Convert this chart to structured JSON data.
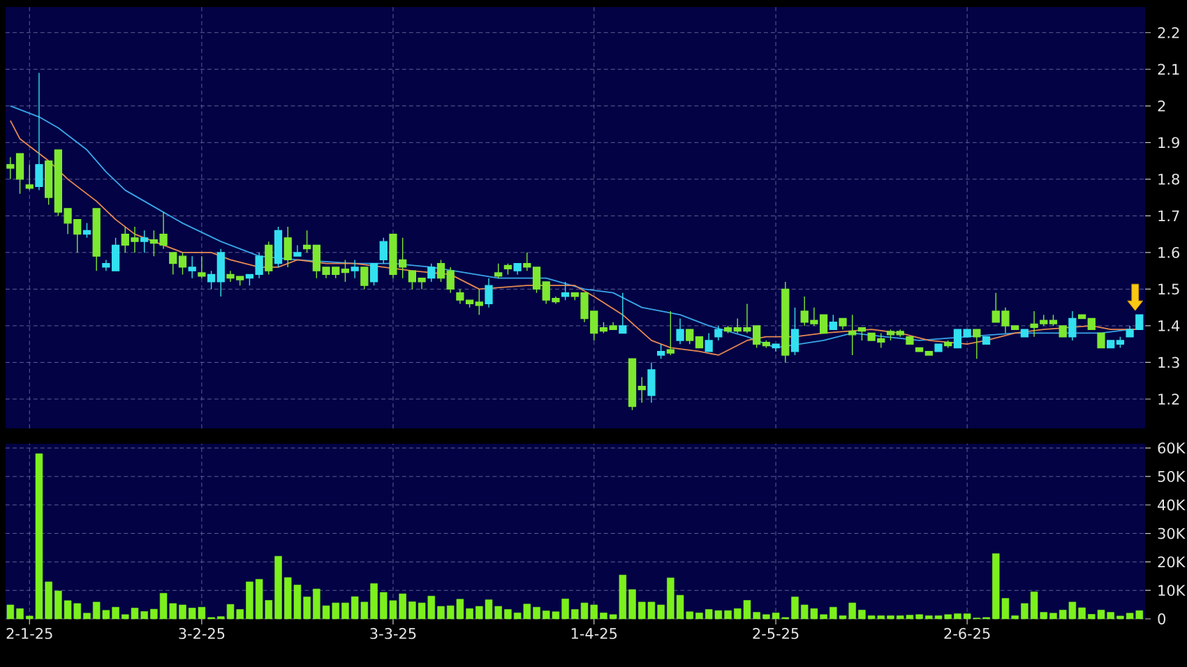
{
  "chart_data": [
    {
      "type": "candlestick",
      "categories": [
        null,
        null,
        null,
        null,
        null,
        null,
        null,
        null,
        null,
        null,
        null,
        null,
        null,
        null,
        null,
        null,
        null,
        null,
        null,
        null,
        null,
        null,
        null,
        null,
        null,
        null,
        null,
        null,
        null,
        null,
        null,
        null,
        null,
        null,
        null,
        null,
        null,
        null,
        null,
        null,
        null,
        null,
        null,
        null,
        null,
        null,
        null,
        null,
        null,
        null,
        null,
        null,
        null,
        null,
        null,
        null,
        null,
        null,
        null,
        null,
        null,
        null,
        null,
        null,
        null,
        null,
        null,
        null,
        null,
        null,
        null,
        null,
        null,
        null,
        null,
        null,
        null,
        null,
        null,
        null,
        null,
        null,
        null,
        null,
        null,
        null,
        null,
        null,
        null,
        null,
        null,
        null,
        null,
        null,
        null,
        null,
        null,
        null,
        null,
        null,
        null,
        null,
        null,
        null,
        null,
        null,
        null,
        null,
        null,
        null,
        null,
        null,
        null,
        null,
        null,
        null,
        null,
        null,
        null
      ],
      "tick_labels": "y",
      "ohlc": [
        [
          1.84,
          1.86,
          1.8,
          1.83
        ],
        [
          1.87,
          1.87,
          1.76,
          1.8
        ],
        [
          1.78,
          1.84,
          1.77,
          1.78
        ],
        [
          1.78,
          2.09,
          1.77,
          1.84
        ],
        [
          1.85,
          1.85,
          1.73,
          1.75
        ],
        [
          1.88,
          1.88,
          1.7,
          1.71
        ],
        [
          1.72,
          1.72,
          1.65,
          1.68
        ],
        [
          1.69,
          1.69,
          1.6,
          1.65
        ],
        [
          1.65,
          1.68,
          1.64,
          1.66
        ],
        [
          1.72,
          1.72,
          1.55,
          1.59
        ],
        [
          1.56,
          1.58,
          1.55,
          1.57
        ],
        [
          1.55,
          1.64,
          1.55,
          1.62
        ],
        [
          1.65,
          1.67,
          1.6,
          1.62
        ],
        [
          1.64,
          1.67,
          1.6,
          1.63
        ],
        [
          1.63,
          1.66,
          1.6,
          1.64
        ],
        [
          1.63,
          1.66,
          1.59,
          1.63
        ],
        [
          1.65,
          1.71,
          1.61,
          1.62
        ],
        [
          1.6,
          1.6,
          1.54,
          1.57
        ],
        [
          1.59,
          1.6,
          1.54,
          1.56
        ],
        [
          1.55,
          1.59,
          1.53,
          1.56
        ],
        [
          1.54,
          1.59,
          1.53,
          1.54
        ],
        [
          1.52,
          1.55,
          1.5,
          1.54
        ],
        [
          1.52,
          1.61,
          1.48,
          1.6
        ],
        [
          1.54,
          1.55,
          1.52,
          1.53
        ],
        [
          1.53,
          1.53,
          1.51,
          1.53
        ],
        [
          1.53,
          1.54,
          1.51,
          1.54
        ],
        [
          1.54,
          1.6,
          1.53,
          1.59
        ],
        [
          1.62,
          1.63,
          1.54,
          1.55
        ],
        [
          1.57,
          1.67,
          1.56,
          1.66
        ],
        [
          1.64,
          1.67,
          1.56,
          1.58
        ],
        [
          1.59,
          1.62,
          1.59,
          1.6
        ],
        [
          1.62,
          1.66,
          1.6,
          1.61
        ],
        [
          1.62,
          1.62,
          1.53,
          1.55
        ],
        [
          1.56,
          1.56,
          1.53,
          1.54
        ],
        [
          1.56,
          1.56,
          1.53,
          1.54
        ],
        [
          1.55,
          1.58,
          1.52,
          1.55
        ],
        [
          1.55,
          1.58,
          1.53,
          1.56
        ],
        [
          1.56,
          1.56,
          1.5,
          1.51
        ],
        [
          1.52,
          1.57,
          1.51,
          1.57
        ],
        [
          1.58,
          1.64,
          1.57,
          1.63
        ],
        [
          1.65,
          1.65,
          1.53,
          1.54
        ],
        [
          1.58,
          1.64,
          1.53,
          1.56
        ],
        [
          1.55,
          1.55,
          1.5,
          1.52
        ],
        [
          1.53,
          1.53,
          1.5,
          1.52
        ],
        [
          1.53,
          1.57,
          1.52,
          1.56
        ],
        [
          1.57,
          1.58,
          1.52,
          1.53
        ],
        [
          1.55,
          1.56,
          1.49,
          1.5
        ],
        [
          1.49,
          1.5,
          1.46,
          1.47
        ],
        [
          1.47,
          1.47,
          1.45,
          1.46
        ],
        [
          1.46,
          1.5,
          1.43,
          1.46
        ],
        [
          1.46,
          1.53,
          1.45,
          1.51
        ],
        [
          1.54,
          1.57,
          1.53,
          1.54
        ],
        [
          1.56,
          1.57,
          1.54,
          1.56
        ],
        [
          1.55,
          1.57,
          1.54,
          1.57
        ],
        [
          1.57,
          1.6,
          1.55,
          1.56
        ],
        [
          1.56,
          1.56,
          1.49,
          1.5
        ],
        [
          1.52,
          1.52,
          1.46,
          1.47
        ],
        [
          1.47,
          1.48,
          1.46,
          1.47
        ],
        [
          1.48,
          1.52,
          1.47,
          1.49
        ],
        [
          1.49,
          1.49,
          1.47,
          1.48
        ],
        [
          1.49,
          1.49,
          1.41,
          1.42
        ],
        [
          1.44,
          1.44,
          1.36,
          1.38
        ],
        [
          1.39,
          1.41,
          1.38,
          1.39
        ],
        [
          1.4,
          1.41,
          1.39,
          1.39
        ],
        [
          1.38,
          1.49,
          1.38,
          1.4
        ],
        [
          1.31,
          1.31,
          1.17,
          1.18
        ],
        [
          1.23,
          1.26,
          1.19,
          1.23
        ],
        [
          1.21,
          1.3,
          1.19,
          1.28
        ],
        [
          1.32,
          1.35,
          1.31,
          1.33
        ],
        [
          1.33,
          1.44,
          1.32,
          1.33
        ],
        [
          1.36,
          1.42,
          1.35,
          1.39
        ],
        [
          1.39,
          1.39,
          1.35,
          1.36
        ],
        [
          1.37,
          1.37,
          1.34,
          1.34
        ],
        [
          1.33,
          1.38,
          1.33,
          1.36
        ],
        [
          1.37,
          1.4,
          1.36,
          1.39
        ],
        [
          1.39,
          1.4,
          1.38,
          1.39
        ],
        [
          1.39,
          1.42,
          1.38,
          1.39
        ],
        [
          1.39,
          1.46,
          1.38,
          1.39
        ],
        [
          1.4,
          1.4,
          1.34,
          1.35
        ],
        [
          1.35,
          1.36,
          1.34,
          1.35
        ],
        [
          1.34,
          1.35,
          1.33,
          1.35
        ],
        [
          1.5,
          1.52,
          1.3,
          1.32
        ],
        [
          1.33,
          1.45,
          1.32,
          1.39
        ],
        [
          1.44,
          1.48,
          1.4,
          1.41
        ],
        [
          1.41,
          1.45,
          1.4,
          1.41
        ],
        [
          1.43,
          1.43,
          1.38,
          1.38
        ],
        [
          1.39,
          1.43,
          1.39,
          1.41
        ],
        [
          1.42,
          1.42,
          1.39,
          1.4
        ],
        [
          1.38,
          1.43,
          1.32,
          1.38
        ],
        [
          1.39,
          1.39,
          1.36,
          1.39
        ],
        [
          1.38,
          1.38,
          1.36,
          1.36
        ],
        [
          1.36,
          1.38,
          1.34,
          1.36
        ],
        [
          1.38,
          1.39,
          1.36,
          1.38
        ],
        [
          1.38,
          1.39,
          1.37,
          1.38
        ],
        [
          1.37,
          1.37,
          1.35,
          1.35
        ],
        [
          1.34,
          1.34,
          1.33,
          1.33
        ],
        [
          1.33,
          1.33,
          1.32,
          1.32
        ],
        [
          1.33,
          1.35,
          1.33,
          1.35
        ],
        [
          1.35,
          1.36,
          1.34,
          1.35
        ],
        [
          1.34,
          1.39,
          1.34,
          1.39
        ],
        [
          1.37,
          1.39,
          1.37,
          1.39
        ],
        [
          1.39,
          1.39,
          1.31,
          1.37
        ],
        [
          1.35,
          1.37,
          1.35,
          1.37
        ],
        [
          1.44,
          1.49,
          1.41,
          1.41
        ],
        [
          1.44,
          1.45,
          1.38,
          1.4
        ],
        [
          1.4,
          1.4,
          1.39,
          1.39
        ],
        [
          1.37,
          1.39,
          1.37,
          1.39
        ],
        [
          1.4,
          1.44,
          1.37,
          1.4
        ],
        [
          1.41,
          1.43,
          1.4,
          1.41
        ],
        [
          1.41,
          1.43,
          1.4,
          1.41
        ],
        [
          1.4,
          1.4,
          1.37,
          1.37
        ],
        [
          1.37,
          1.44,
          1.36,
          1.42
        ],
        [
          1.43,
          1.43,
          1.42,
          1.42
        ],
        [
          1.42,
          1.42,
          1.39,
          1.39
        ],
        [
          1.38,
          1.38,
          1.34,
          1.34
        ],
        [
          1.34,
          1.36,
          1.34,
          1.36
        ],
        [
          1.35,
          1.37,
          1.34,
          1.36
        ],
        [
          1.37,
          1.4,
          1.37,
          1.39
        ],
        [
          1.39,
          1.43,
          1.39,
          1.43
        ]
      ],
      "colors": [
        "#7ee830",
        "#7ee830",
        "#7ee830",
        "#33e0f0",
        "#7ee830",
        "#7ee830",
        "#7ee830",
        "#7ee830",
        "#33e0f0",
        "#7ee830",
        "#33e0f0",
        "#33e0f0",
        "#7ee830",
        "#7ee830",
        "#33e0f0",
        "#7ee830",
        "#7ee830",
        "#7ee830",
        "#7ee830",
        "#33e0f0",
        "#7ee830",
        "#33e0f0",
        "#33e0f0",
        "#7ee830",
        "#7ee830",
        "#33e0f0",
        "#33e0f0",
        "#7ee830",
        "#33e0f0",
        "#7ee830",
        "#33e0f0",
        "#7ee830",
        "#7ee830",
        "#7ee830",
        "#7ee830",
        "#7ee830",
        "#33e0f0",
        "#7ee830",
        "#33e0f0",
        "#33e0f0",
        "#7ee830",
        "#7ee830",
        "#7ee830",
        "#7ee830",
        "#33e0f0",
        "#7ee830",
        "#7ee830",
        "#7ee830",
        "#7ee830",
        "#7ee830",
        "#33e0f0",
        "#7ee830",
        "#7ee830",
        "#33e0f0",
        "#7ee830",
        "#7ee830",
        "#7ee830",
        "#7ee830",
        "#33e0f0",
        "#7ee830",
        "#7ee830",
        "#7ee830",
        "#7ee830",
        "#7ee830",
        "#33e0f0",
        "#7ee830",
        "#7ee830",
        "#33e0f0",
        "#33e0f0",
        "#7ee830",
        "#33e0f0",
        "#7ee830",
        "#7ee830",
        "#33e0f0",
        "#33e0f0",
        "#7ee830",
        "#7ee830",
        "#7ee830",
        "#7ee830",
        "#7ee830",
        "#33e0f0",
        "#7ee830",
        "#33e0f0",
        "#7ee830",
        "#7ee830",
        "#7ee830",
        "#33e0f0",
        "#7ee830",
        "#7ee830",
        "#7ee830",
        "#7ee830",
        "#7ee830",
        "#7ee830",
        "#7ee830",
        "#7ee830",
        "#7ee830",
        "#7ee830",
        "#33e0f0",
        "#7ee830",
        "#33e0f0",
        "#33e0f0",
        "#7ee830",
        "#33e0f0",
        "#7ee830",
        "#7ee830",
        "#7ee830",
        "#33e0f0",
        "#7ee830",
        "#7ee830",
        "#7ee830",
        "#7ee830",
        "#33e0f0",
        "#7ee830",
        "#7ee830",
        "#7ee830",
        "#33e0f0",
        "#33e0f0",
        "#33e0f0",
        "#33e0f0"
      ],
      "series": [
        {
          "type": "line",
          "color": "#3aa6ea",
          "values": [
            2.0,
            null,
            null,
            1.97,
            null,
            1.94,
            null,
            null,
            1.88,
            null,
            1.82,
            null,
            1.77,
            null,
            1.74,
            null,
            1.71,
            null,
            1.68,
            null,
            null,
            null,
            1.63,
            null,
            1.61,
            null,
            1.59,
            null,
            null,
            null,
            1.58,
            null,
            null,
            null,
            null,
            null,
            1.57,
            null,
            null,
            null,
            1.57,
            null,
            null,
            null,
            1.56,
            null,
            null,
            null,
            null,
            null,
            null,
            1.53,
            null,
            null,
            null,
            null,
            1.53,
            null,
            null,
            null,
            1.5,
            null,
            null,
            1.49,
            null,
            null,
            1.45,
            null,
            null,
            null,
            1.43,
            null,
            null,
            1.4,
            null,
            null,
            null,
            1.37,
            null,
            null,
            1.34,
            null,
            null,
            null,
            null,
            1.36,
            null,
            null,
            1.38,
            null,
            null,
            null,
            null,
            null,
            null,
            1.36,
            null,
            null,
            null,
            null,
            1.37,
            null,
            null,
            null,
            null,
            1.38,
            null,
            null,
            null,
            null,
            1.38,
            null,
            null,
            null,
            1.38,
            null,
            null,
            1.39,
            1.39
          ]
        },
        {
          "type": "line",
          "color": "#e88a50",
          "values": [
            1.96,
            1.91,
            null,
            null,
            1.85,
            null,
            1.8,
            null,
            null,
            1.74,
            null,
            1.69,
            null,
            1.65,
            null,
            null,
            1.62,
            null,
            1.6,
            null,
            null,
            1.6,
            null,
            1.58,
            null,
            null,
            1.56,
            null,
            1.56,
            null,
            1.58,
            null,
            null,
            1.57,
            null,
            null,
            1.57,
            null,
            null,
            1.56,
            null,
            null,
            1.55,
            null,
            null,
            null,
            1.54,
            null,
            null,
            1.5,
            null,
            null,
            null,
            null,
            1.51,
            null,
            null,
            null,
            null,
            1.51,
            null,
            1.48,
            null,
            null,
            1.43,
            null,
            null,
            1.36,
            null,
            1.34,
            null,
            null,
            1.33,
            null,
            1.32,
            null,
            null,
            1.36,
            null,
            1.37,
            null,
            null,
            1.37,
            null,
            null,
            1.38,
            null,
            null,
            null,
            null,
            1.39,
            null,
            null,
            1.38,
            null,
            null,
            1.36,
            null,
            null,
            null,
            1.35,
            null,
            1.36,
            null,
            null,
            1.38,
            null,
            null,
            1.39,
            null,
            null,
            null,
            null,
            1.4,
            null,
            1.39,
            null,
            1.39,
            1.39
          ]
        }
      ],
      "ylim": [
        1.12,
        2.27
      ],
      "yticks": [
        1.2,
        1.3,
        1.4,
        1.5,
        1.6,
        1.7,
        1.8,
        1.9,
        2,
        2.1,
        2.2
      ],
      "grid": true
    },
    {
      "type": "bar",
      "categories": [
        null,
        null,
        "2-1-25",
        null,
        null,
        null,
        null,
        null,
        null,
        null,
        null,
        null,
        null,
        null,
        null,
        null,
        null,
        null,
        null,
        null,
        "3-2-25",
        null,
        null,
        null,
        null,
        null,
        null,
        null,
        null,
        null,
        null,
        null,
        null,
        null,
        null,
        null,
        null,
        null,
        null,
        null,
        "3-3-25",
        null,
        null,
        null,
        null,
        null,
        null,
        null,
        null,
        null,
        null,
        null,
        null,
        null,
        null,
        null,
        null,
        null,
        null,
        null,
        null,
        "1-4-25",
        null,
        null,
        null,
        null,
        null,
        null,
        null,
        null,
        null,
        null,
        null,
        null,
        null,
        null,
        null,
        null,
        null,
        null,
        "2-5-25",
        null,
        null,
        null,
        null,
        null,
        null,
        null,
        null,
        null,
        null,
        null,
        null,
        null,
        null,
        null,
        null,
        null,
        null,
        null,
        "2-6-25",
        null,
        null,
        null,
        null,
        null,
        null,
        null,
        null,
        null,
        null,
        null,
        null,
        null,
        null,
        null,
        null,
        null,
        null
      ],
      "values": [
        4900,
        3600,
        1000,
        58000,
        13000,
        9800,
        6400,
        5400,
        2000,
        5900,
        3000,
        4100,
        1500,
        3800,
        2600,
        3400,
        9000,
        5400,
        4900,
        3800,
        4100,
        500,
        800,
        5100,
        3300,
        13000,
        13900,
        6500,
        22000,
        14500,
        11900,
        7700,
        10500,
        4600,
        5600,
        5600,
        7800,
        5900,
        12400,
        9300,
        6400,
        8800,
        6000,
        5600,
        8000,
        4400,
        4600,
        6900,
        3600,
        4400,
        6700,
        4400,
        3300,
        2100,
        5200,
        4100,
        2800,
        2500,
        7000,
        3300,
        5600,
        4900,
        2100,
        1500,
        15400,
        10300,
        5900,
        5900,
        4900,
        14400,
        8300,
        2500,
        2100,
        3300,
        2900,
        2900,
        3600,
        6500,
        2300,
        1500,
        2100,
        500,
        7700,
        4900,
        3600,
        1500,
        4100,
        1100,
        5600,
        3100,
        1100,
        1100,
        1100,
        1100,
        1300,
        1500,
        1100,
        1100,
        1500,
        1800,
        1800,
        300,
        500,
        22900,
        7200,
        1100,
        5400,
        9500,
        2300,
        2000,
        3100,
        5900,
        3900,
        1600,
        3100,
        2300,
        1000,
        2000,
        2900
      ],
      "color": "#7cf01c",
      "ylim": [
        0,
        61500
      ],
      "yticks": [
        0,
        {
          "value": 10000,
          "label": "10K"
        },
        {
          "value": 20000,
          "label": "20K"
        },
        {
          "value": 30000,
          "label": "30K"
        },
        {
          "value": 40000,
          "label": "40K"
        },
        {
          "value": 50000,
          "label": "50K"
        },
        {
          "value": 60000,
          "label": "60K"
        }
      ],
      "grid": true
    }
  ]
}
